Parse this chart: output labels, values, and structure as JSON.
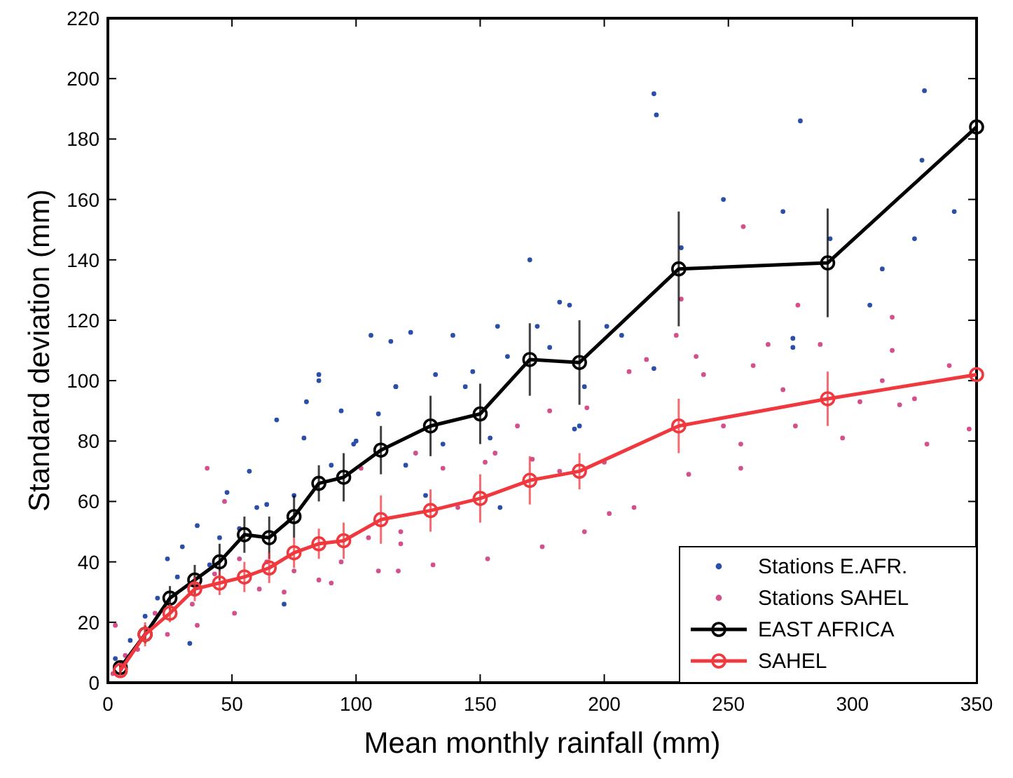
{
  "chart_data": {
    "type": "line",
    "xlabel": "Mean monthly rainfall (mm)",
    "ylabel": "Standard deviation (mm)",
    "xlim": [
      0,
      350
    ],
    "ylim": [
      0,
      220
    ],
    "xticks": [
      0,
      50,
      100,
      150,
      200,
      250,
      300,
      350
    ],
    "yticks": [
      0,
      20,
      40,
      60,
      80,
      100,
      120,
      140,
      160,
      180,
      200,
      220
    ],
    "legend": "bottom right",
    "series": [
      {
        "name": "Stations E.AFR.",
        "type": "scatter",
        "marker": "circle",
        "color": "#2b4ea8",
        "x": [
          220,
          221,
          279,
          329,
          328,
          341,
          248,
          272,
          325,
          291,
          231,
          312,
          307,
          276,
          276,
          220,
          170,
          106,
          114,
          122,
          139,
          157,
          173,
          182,
          186,
          132,
          147,
          116,
          144,
          161,
          178,
          201,
          207,
          192,
          188,
          190,
          154,
          120,
          135,
          128,
          158,
          85,
          85,
          116,
          80,
          68,
          94,
          79,
          57,
          48,
          36,
          24,
          71,
          33,
          109,
          99,
          64,
          41,
          15,
          9,
          3,
          53,
          30,
          20,
          28,
          45,
          60,
          75,
          90,
          100
        ],
        "values": [
          195,
          188,
          186,
          196,
          173,
          156,
          160,
          156,
          147,
          147,
          144,
          137,
          125,
          114,
          111,
          104,
          140,
          115,
          113,
          116,
          115,
          118,
          118,
          126,
          125,
          102,
          103,
          98,
          98,
          108,
          111,
          118,
          115,
          98,
          84,
          85,
          81,
          72,
          79,
          62,
          58,
          102,
          100,
          98,
          93,
          87,
          90,
          81,
          70,
          63,
          52,
          41,
          26,
          13,
          89,
          79,
          59,
          39,
          22,
          14,
          8,
          51,
          45,
          28,
          35,
          48,
          58,
          62,
          72,
          80
        ]
      },
      {
        "name": "Stations SAHEL",
        "type": "scatter",
        "marker": "circle",
        "color": "#d4508c",
        "x": [
          256,
          231,
          229,
          278,
          316,
          316,
          266,
          287,
          339,
          237,
          260,
          240,
          272,
          312,
          319,
          296,
          330,
          255,
          234,
          255,
          347,
          303,
          325,
          277,
          248,
          217,
          210,
          193,
          165,
          178,
          156,
          182,
          200,
          212,
          202,
          192,
          175,
          153,
          131,
          117,
          118,
          141,
          152,
          171,
          135,
          124,
          40,
          47,
          34,
          102,
          105,
          109,
          85,
          61,
          51,
          36,
          24,
          12,
          3,
          53,
          64,
          75,
          94,
          90,
          71,
          19,
          7,
          2,
          118,
          43
        ],
        "values": [
          151,
          127,
          115,
          125,
          121,
          110,
          112,
          112,
          105,
          108,
          105,
          102,
          97,
          100,
          92,
          81,
          79,
          79,
          69,
          71,
          84,
          93,
          94,
          85,
          85,
          107,
          103,
          91,
          85,
          90,
          76,
          70,
          73,
          58,
          56,
          50,
          45,
          41,
          39,
          37,
          50,
          58,
          73,
          74,
          71,
          76,
          71,
          60,
          26,
          71,
          48,
          37,
          34,
          31,
          23,
          19,
          16,
          11,
          19,
          41,
          40,
          37,
          40,
          33,
          30,
          23,
          9,
          3,
          46,
          36
        ]
      },
      {
        "name": "EAST AFRICA",
        "marker": "circle",
        "color": "#000000",
        "x": [
          5,
          15,
          25,
          35,
          45,
          55,
          65,
          75,
          85,
          95,
          110,
          130,
          150,
          170,
          190,
          230,
          290,
          350
        ],
        "values": [
          5,
          16,
          28,
          34,
          40,
          49,
          48,
          55,
          66,
          68,
          77,
          85,
          89,
          107,
          106,
          137,
          139,
          184
        ],
        "errors": [
          2,
          3,
          4,
          5,
          6,
          6,
          7,
          7,
          6,
          8,
          8,
          10,
          10,
          12,
          14,
          19,
          18,
          null
        ]
      },
      {
        "name": "SAHEL",
        "marker": "circle",
        "color": "#f0383f",
        "x": [
          5,
          15,
          25,
          35,
          45,
          55,
          65,
          75,
          85,
          95,
          110,
          130,
          150,
          170,
          190,
          230,
          290,
          350
        ],
        "values": [
          4,
          16,
          23,
          31,
          33,
          35,
          38,
          43,
          46,
          47,
          54,
          57,
          61,
          67,
          70,
          85,
          94,
          102
        ],
        "errors": [
          2,
          4,
          3,
          4,
          4,
          5,
          5,
          5,
          5,
          6,
          8,
          7,
          8,
          8,
          6,
          9,
          9,
          null
        ]
      }
    ]
  }
}
